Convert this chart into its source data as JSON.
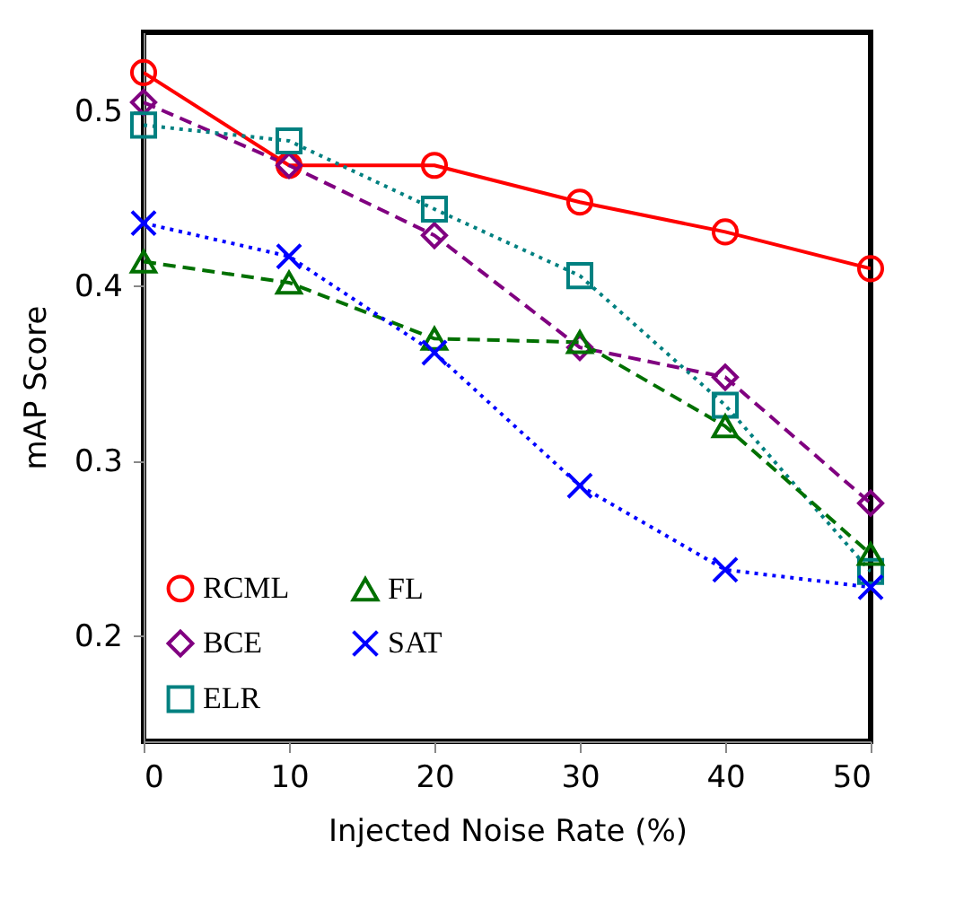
{
  "chart_data": {
    "type": "line",
    "xlabel": "Injected Noise Rate (%)",
    "ylabel": "mAP Score",
    "x": [
      0,
      10,
      20,
      30,
      40,
      50
    ],
    "xlim": [
      0,
      50
    ],
    "xticks": [
      0,
      10,
      20,
      30,
      40,
      50
    ],
    "ylim": [
      0.14,
      0.545
    ],
    "yticks": [
      0.2,
      0.3,
      0.4,
      0.5
    ],
    "grid": false,
    "legend": "bottom left",
    "series": [
      {
        "name": "RCML",
        "color": "#ff0000",
        "marker": "circle",
        "line_style": "solid",
        "values": [
          0.522,
          0.469,
          0.469,
          0.448,
          0.431,
          0.41
        ]
      },
      {
        "name": "BCE",
        "color": "#800080",
        "marker": "diamond",
        "line_style": "dashed",
        "values": [
          0.505,
          0.469,
          0.429,
          0.365,
          0.348,
          0.276
        ]
      },
      {
        "name": "ELR",
        "color": "#008080",
        "marker": "square",
        "line_style": "dotted",
        "values": [
          0.492,
          0.483,
          0.444,
          0.406,
          0.332,
          0.237
        ]
      },
      {
        "name": "FL",
        "color": "#007000",
        "marker": "triangle",
        "line_style": "dashed",
        "values": [
          0.414,
          0.402,
          0.37,
          0.368,
          0.32,
          0.247
        ]
      },
      {
        "name": "SAT",
        "color": "#0000ff",
        "marker": "cross",
        "line_style": "dotted",
        "values": [
          0.436,
          0.417,
          0.362,
          0.286,
          0.238,
          0.228
        ]
      }
    ]
  }
}
